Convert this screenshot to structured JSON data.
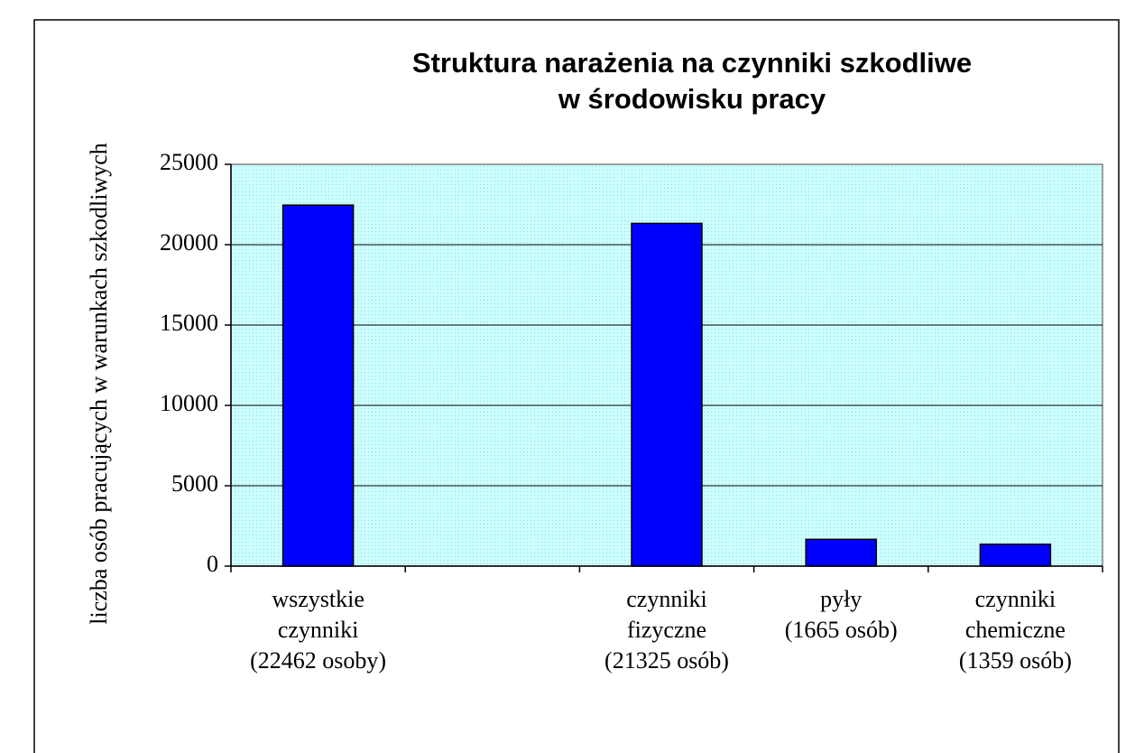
{
  "chart_data": {
    "type": "bar",
    "title": [
      "Struktura narażenia na czynniki szkodliwe",
      "w środowisku pracy"
    ],
    "y_label": "liczba osób pracujących w warunkach szkodliwych",
    "categories": [
      [
        "wszystkie",
        "czynniki",
        "(22462 osoby)"
      ],
      null,
      [
        "czynniki",
        "fizyczne",
        "(21325 osób)"
      ],
      [
        "pyły",
        "(1665 osób)"
      ],
      [
        "czynniki",
        "chemiczne",
        "(1359 osób)"
      ]
    ],
    "values": [
      22462,
      null,
      21325,
      1665,
      1359
    ],
    "color": "#0000ff",
    "ylim": [
      0,
      25000
    ],
    "yticks": [
      0,
      5000,
      10000,
      15000,
      20000,
      25000
    ],
    "grid": true
  }
}
